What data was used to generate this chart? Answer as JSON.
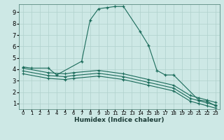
{
  "xlabel": "Humidex (Indice chaleur)",
  "bg_color": "#cde8e5",
  "grid_color": "#b0d0cc",
  "line_color": "#1a6b5a",
  "xlim": [
    -0.5,
    23.5
  ],
  "ylim": [
    0.5,
    9.7
  ],
  "xticks": [
    0,
    1,
    2,
    3,
    4,
    5,
    6,
    7,
    8,
    9,
    10,
    11,
    12,
    13,
    14,
    15,
    16,
    17,
    18,
    19,
    20,
    21,
    22,
    23
  ],
  "yticks": [
    1,
    2,
    3,
    4,
    5,
    6,
    7,
    8,
    9
  ],
  "curve1_x": [
    0,
    1,
    3,
    4,
    7,
    8,
    9,
    10,
    11,
    12,
    14,
    15,
    16,
    17,
    18,
    21,
    22,
    23
  ],
  "curve1_y": [
    4.2,
    4.1,
    4.1,
    3.5,
    4.7,
    8.3,
    9.3,
    9.4,
    9.5,
    9.5,
    7.3,
    6.1,
    3.9,
    3.5,
    3.5,
    1.3,
    1.2,
    0.8
  ],
  "curve2_x": [
    0,
    3,
    5,
    6,
    9,
    12,
    15,
    18,
    20,
    21,
    22,
    23
  ],
  "curve2_y": [
    4.1,
    3.7,
    3.6,
    3.7,
    3.9,
    3.6,
    3.1,
    2.6,
    1.7,
    1.5,
    1.3,
    1.1
  ],
  "curve3_x": [
    0,
    3,
    5,
    6,
    9,
    12,
    15,
    18,
    20,
    21,
    22,
    23
  ],
  "curve3_y": [
    3.85,
    3.45,
    3.35,
    3.45,
    3.65,
    3.35,
    2.85,
    2.35,
    1.45,
    1.25,
    1.05,
    0.85
  ],
  "curve4_x": [
    0,
    3,
    5,
    6,
    9,
    12,
    15,
    18,
    20,
    21,
    22,
    23
  ],
  "curve4_y": [
    3.6,
    3.2,
    3.1,
    3.2,
    3.4,
    3.1,
    2.6,
    2.1,
    1.2,
    1.0,
    0.8,
    0.6
  ]
}
